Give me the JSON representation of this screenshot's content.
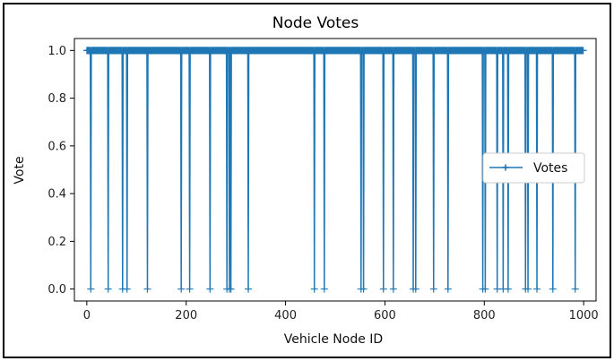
{
  "chart_data": {
    "type": "line",
    "title": "Node Votes",
    "xlabel": "Vehicle Node ID",
    "ylabel": "Vote",
    "xlim": [
      -25,
      1025
    ],
    "ylim": [
      -0.05,
      1.05
    ],
    "xticks": [
      0,
      200,
      400,
      600,
      800,
      1000
    ],
    "yticks": [
      0.0,
      0.2,
      0.4,
      0.6,
      0.8,
      1.0
    ],
    "xtick_labels": [
      "0",
      "200",
      "400",
      "600",
      "800",
      "1000"
    ],
    "ytick_labels": [
      "0.0",
      "0.2",
      "0.4",
      "0.6",
      "0.8",
      "1.0"
    ],
    "grid": false,
    "legend": {
      "position": "center-right",
      "entries": [
        "Votes"
      ]
    },
    "series": [
      {
        "name": "Votes",
        "color": "#1f77b4",
        "marker": "plus",
        "x_range": [
          0,
          999
        ],
        "default_y": 1,
        "zero_x": [
          8,
          43,
          72,
          81,
          122,
          190,
          207,
          248,
          282,
          287,
          290,
          325,
          458,
          478,
          552,
          557,
          597,
          617,
          657,
          662,
          698,
          727,
          797,
          802,
          826,
          838,
          848,
          883,
          888,
          906,
          938,
          983
        ]
      }
    ]
  }
}
